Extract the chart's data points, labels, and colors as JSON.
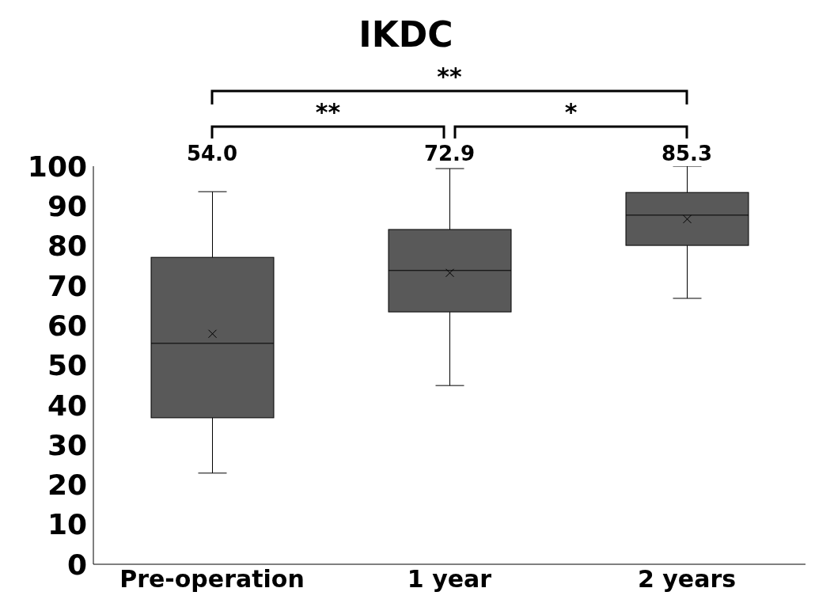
{
  "chart_data": {
    "type": "box",
    "title": "IKDC",
    "categories": [
      "Pre-operation",
      "1 year",
      "2 years"
    ],
    "boxes": [
      {
        "low": 22.9,
        "q1": 36.8,
        "median": 55.5,
        "q3": 77.1,
        "high": 93.6,
        "mean": 57.9
      },
      {
        "low": 44.9,
        "q1": 63.4,
        "median": 73.8,
        "q3": 84.1,
        "high": 99.4,
        "mean": 73.2
      },
      {
        "low": 66.8,
        "q1": 80.1,
        "median": 87.7,
        "q3": 93.4,
        "high": 100,
        "mean": 86.7
      }
    ],
    "color": "#595959",
    "ylim": [
      0,
      100
    ],
    "yticks": [
      0,
      10,
      20,
      30,
      40,
      50,
      60,
      70,
      80,
      90,
      100
    ],
    "grid": false,
    "annotations": [
      "54.0",
      "72.9",
      "85.3",
      "**",
      "*",
      "**"
    ]
  }
}
